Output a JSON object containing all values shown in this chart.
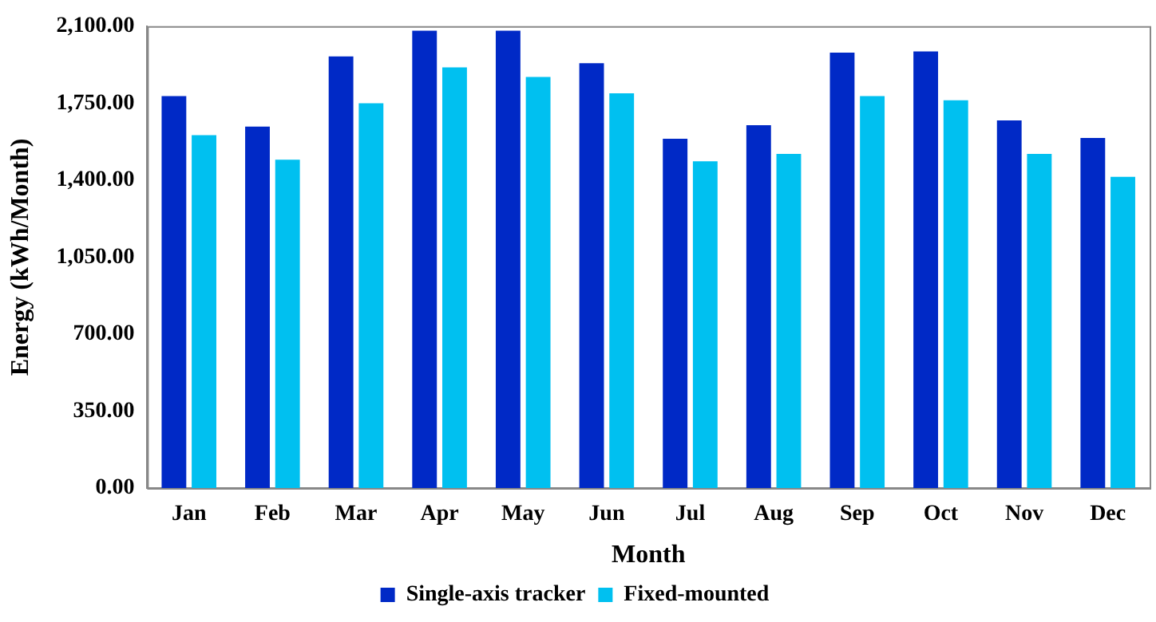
{
  "chart_data": {
    "type": "bar",
    "xlabel": "Month",
    "ylabel": "Energy (kWh/Month)",
    "categories": [
      "Jan",
      "Feb",
      "Mar",
      "Apr",
      "May",
      "Jun",
      "Jul",
      "Aug",
      "Sep",
      "Oct",
      "Nov",
      "Dec"
    ],
    "series": [
      {
        "name": "Single-axis tracker",
        "color": "#0029c6",
        "values": [
          1782,
          1643,
          1962,
          2079,
          2079,
          1932,
          1588,
          1650,
          1980,
          1985,
          1671,
          1592
        ]
      },
      {
        "name": "Fixed-mounted",
        "color": "#00c0f0",
        "values": [
          1604,
          1493,
          1749,
          1913,
          1869,
          1795,
          1486,
          1519,
          1782,
          1763,
          1519,
          1415
        ]
      }
    ],
    "ylim": [
      0,
      2100
    ],
    "yticks": [
      {
        "value": 0,
        "label": "0.00"
      },
      {
        "value": 350,
        "label": "350.00"
      },
      {
        "value": 700,
        "label": "700.00"
      },
      {
        "value": 1050,
        "label": "1,050.00"
      },
      {
        "value": 1400,
        "label": "1,400.00"
      },
      {
        "value": 1750,
        "label": "1,750.00"
      },
      {
        "value": 2100,
        "label": "2,100.00"
      }
    ],
    "grid": false,
    "legend": "bottom"
  }
}
